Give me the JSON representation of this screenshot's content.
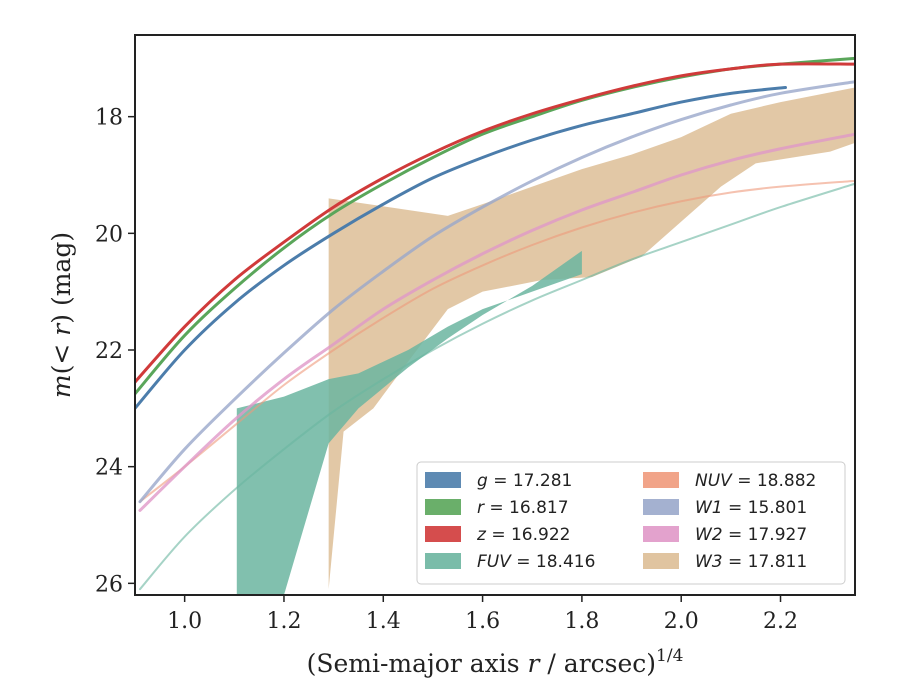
{
  "chart_data": {
    "type": "line",
    "xlabel_main": "(Semi-major axis ",
    "xlabel_var": "r",
    "xlabel_unit": " / arcsec)",
    "xlabel_sup": "1/4",
    "ylabel_pre": "m",
    "ylabel_mid": "(< ",
    "ylabel_var": "r",
    "ylabel_post": ") (mag)",
    "xlim": [
      0.9,
      2.35
    ],
    "ylim": [
      26.2,
      16.6
    ],
    "y_inverted": true,
    "xticks": [
      1.0,
      1.2,
      1.4,
      1.6,
      1.8,
      2.0,
      2.2
    ],
    "xtick_labels": [
      "1.0",
      "1.2",
      "1.4",
      "1.6",
      "1.8",
      "2.0",
      "2.2"
    ],
    "yticks": [
      18,
      20,
      22,
      24,
      26
    ],
    "ytick_labels": [
      "18",
      "20",
      "22",
      "24",
      "26"
    ],
    "grid": false,
    "legend_position": "lower-right",
    "series": [
      {
        "name": "g",
        "legend_value": " = 17.281",
        "color": "#4c7dab",
        "kind": "curve",
        "width": 3,
        "x": [
          0.9,
          1.0,
          1.1,
          1.2,
          1.3,
          1.4,
          1.5,
          1.6,
          1.7,
          1.8,
          1.9,
          2.0,
          2.1,
          2.21
        ],
        "y": [
          23.0,
          22.0,
          21.2,
          20.55,
          20.0,
          19.5,
          19.05,
          18.7,
          18.4,
          18.15,
          17.95,
          17.75,
          17.6,
          17.5
        ]
      },
      {
        "name": "r",
        "legend_value": " = 16.817",
        "color": "#5aa65a",
        "kind": "curve",
        "width": 3,
        "x": [
          0.9,
          1.0,
          1.1,
          1.2,
          1.3,
          1.4,
          1.5,
          1.6,
          1.7,
          1.8,
          1.9,
          2.0,
          2.1,
          2.2,
          2.35
        ],
        "y": [
          22.75,
          21.75,
          20.95,
          20.25,
          19.65,
          19.15,
          18.7,
          18.3,
          18.0,
          17.72,
          17.5,
          17.32,
          17.18,
          17.1,
          17.0
        ]
      },
      {
        "name": "z",
        "legend_value": " = 16.922",
        "color": "#d03a3a",
        "kind": "curve",
        "width": 3,
        "x": [
          0.9,
          1.0,
          1.1,
          1.2,
          1.3,
          1.4,
          1.5,
          1.6,
          1.7,
          1.8,
          1.9,
          2.0,
          2.1,
          2.2,
          2.35
        ],
        "y": [
          22.55,
          21.6,
          20.8,
          20.15,
          19.55,
          19.05,
          18.62,
          18.25,
          17.95,
          17.7,
          17.48,
          17.3,
          17.18,
          17.1,
          17.1
        ]
      },
      {
        "name": "FUV",
        "legend_value": " = 18.416",
        "color": "#6bb5a0",
        "kind": "curve",
        "width": 2,
        "opacity": 0.6,
        "x": [
          0.91,
          1.0,
          1.1,
          1.2,
          1.3,
          1.4,
          1.5,
          1.6,
          1.7,
          1.8,
          1.9,
          2.0,
          2.1,
          2.2,
          2.35
        ],
        "y": [
          26.1,
          25.2,
          24.4,
          23.7,
          23.05,
          22.5,
          22.0,
          21.55,
          21.15,
          20.8,
          20.45,
          20.15,
          19.85,
          19.55,
          19.15
        ],
        "band": {
          "x": [
            1.105,
            1.2,
            1.29,
            1.35,
            1.45,
            1.53,
            1.6,
            1.7,
            1.8,
            1.8,
            1.7,
            1.6,
            1.53,
            1.45,
            1.35,
            1.29,
            1.2,
            1.105
          ],
          "y": [
            23.0,
            22.8,
            22.5,
            22.4,
            22.0,
            21.6,
            21.3,
            21.0,
            20.7,
            20.3,
            20.9,
            21.4,
            21.8,
            22.3,
            23.0,
            23.6,
            26.2,
            26.2
          ]
        }
      },
      {
        "name": "NUV",
        "legend_value": " = 18.882",
        "color": "#ef9a7c",
        "kind": "curve",
        "width": 2,
        "opacity": 0.6,
        "x": [
          0.91,
          1.0,
          1.1,
          1.2,
          1.3,
          1.4,
          1.5,
          1.6,
          1.7,
          1.8,
          1.9,
          2.0,
          2.1,
          2.2,
          2.35
        ],
        "y": [
          24.6,
          24.0,
          23.3,
          22.6,
          22.0,
          21.45,
          20.95,
          20.55,
          20.2,
          19.9,
          19.65,
          19.45,
          19.3,
          19.2,
          19.1
        ]
      },
      {
        "name": "W1",
        "legend_value": " = 15.801",
        "color": "#9aa8cb",
        "kind": "curve",
        "width": 3,
        "opacity": 0.8,
        "x": [
          0.91,
          1.0,
          1.1,
          1.2,
          1.3,
          1.4,
          1.5,
          1.6,
          1.7,
          1.8,
          1.9,
          2.0,
          2.1,
          2.2,
          2.35
        ],
        "y": [
          24.6,
          23.7,
          22.85,
          22.05,
          21.3,
          20.65,
          20.05,
          19.55,
          19.1,
          18.7,
          18.35,
          18.05,
          17.8,
          17.6,
          17.4
        ]
      },
      {
        "name": "W2",
        "legend_value": " = 17.927",
        "color": "#e098c8",
        "kind": "curve",
        "width": 3,
        "opacity": 0.8,
        "x": [
          0.91,
          1.0,
          1.1,
          1.2,
          1.3,
          1.4,
          1.5,
          1.6,
          1.7,
          1.8,
          1.9,
          2.0,
          2.1,
          2.2,
          2.35
        ],
        "y": [
          24.75,
          24.0,
          23.2,
          22.5,
          21.9,
          21.3,
          20.8,
          20.35,
          19.95,
          19.6,
          19.3,
          19.0,
          18.75,
          18.55,
          18.3
        ]
      },
      {
        "name": "W3",
        "legend_value": " = 17.811",
        "color": "#ddbe96",
        "kind": "band",
        "band": {
          "x": [
            1.29,
            1.53,
            1.6,
            1.7,
            1.8,
            1.9,
            2.0,
            2.1,
            2.2,
            2.35,
            2.35,
            2.3,
            2.15,
            2.08,
            2.0,
            1.92,
            1.82,
            1.72,
            1.6,
            1.53,
            1.45,
            1.38,
            1.32,
            1.29
          ],
          "y": [
            19.4,
            19.7,
            19.5,
            19.2,
            18.9,
            18.65,
            18.35,
            17.95,
            17.75,
            17.5,
            18.45,
            18.6,
            18.8,
            19.2,
            19.8,
            20.4,
            20.75,
            20.8,
            21.0,
            21.3,
            22.2,
            23.0,
            23.4,
            26.1
          ]
        }
      }
    ]
  }
}
